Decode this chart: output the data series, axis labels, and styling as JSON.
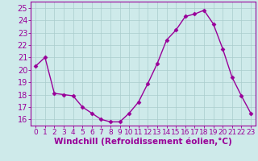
{
  "x": [
    0,
    1,
    2,
    3,
    4,
    5,
    6,
    7,
    8,
    9,
    10,
    11,
    12,
    13,
    14,
    15,
    16,
    17,
    18,
    19,
    20,
    21,
    22,
    23
  ],
  "y": [
    20.3,
    21.0,
    18.1,
    18.0,
    17.9,
    17.0,
    16.5,
    16.0,
    15.8,
    15.8,
    16.5,
    17.4,
    18.9,
    20.5,
    22.4,
    23.2,
    24.3,
    24.5,
    24.8,
    23.7,
    21.7,
    19.4,
    17.9,
    16.5
  ],
  "ylim": [
    15.5,
    25.5
  ],
  "xlim": [
    -0.5,
    23.5
  ],
  "yticks": [
    16,
    17,
    18,
    19,
    20,
    21,
    22,
    23,
    24,
    25
  ],
  "xticks": [
    0,
    1,
    2,
    3,
    4,
    5,
    6,
    7,
    8,
    9,
    10,
    11,
    12,
    13,
    14,
    15,
    16,
    17,
    18,
    19,
    20,
    21,
    22,
    23
  ],
  "xtick_labels": [
    "0",
    "1",
    "2",
    "3",
    "4",
    "5",
    "6",
    "7",
    "8",
    "9",
    "10",
    "11",
    "12",
    "13",
    "14",
    "15",
    "16",
    "17",
    "18",
    "19",
    "20",
    "21",
    "22",
    "23"
  ],
  "line_color": "#990099",
  "marker": "D",
  "marker_size": 2.5,
  "line_width": 1.0,
  "bg_color": "#ceeaea",
  "grid_color": "#aacccc",
  "xlabel": "Windchill (Refroidissement éolien,°C)",
  "xlabel_fontsize": 7.5,
  "tick_fontsize": 6.5,
  "ytick_fontsize": 7,
  "fig_bg": "#ceeaea"
}
